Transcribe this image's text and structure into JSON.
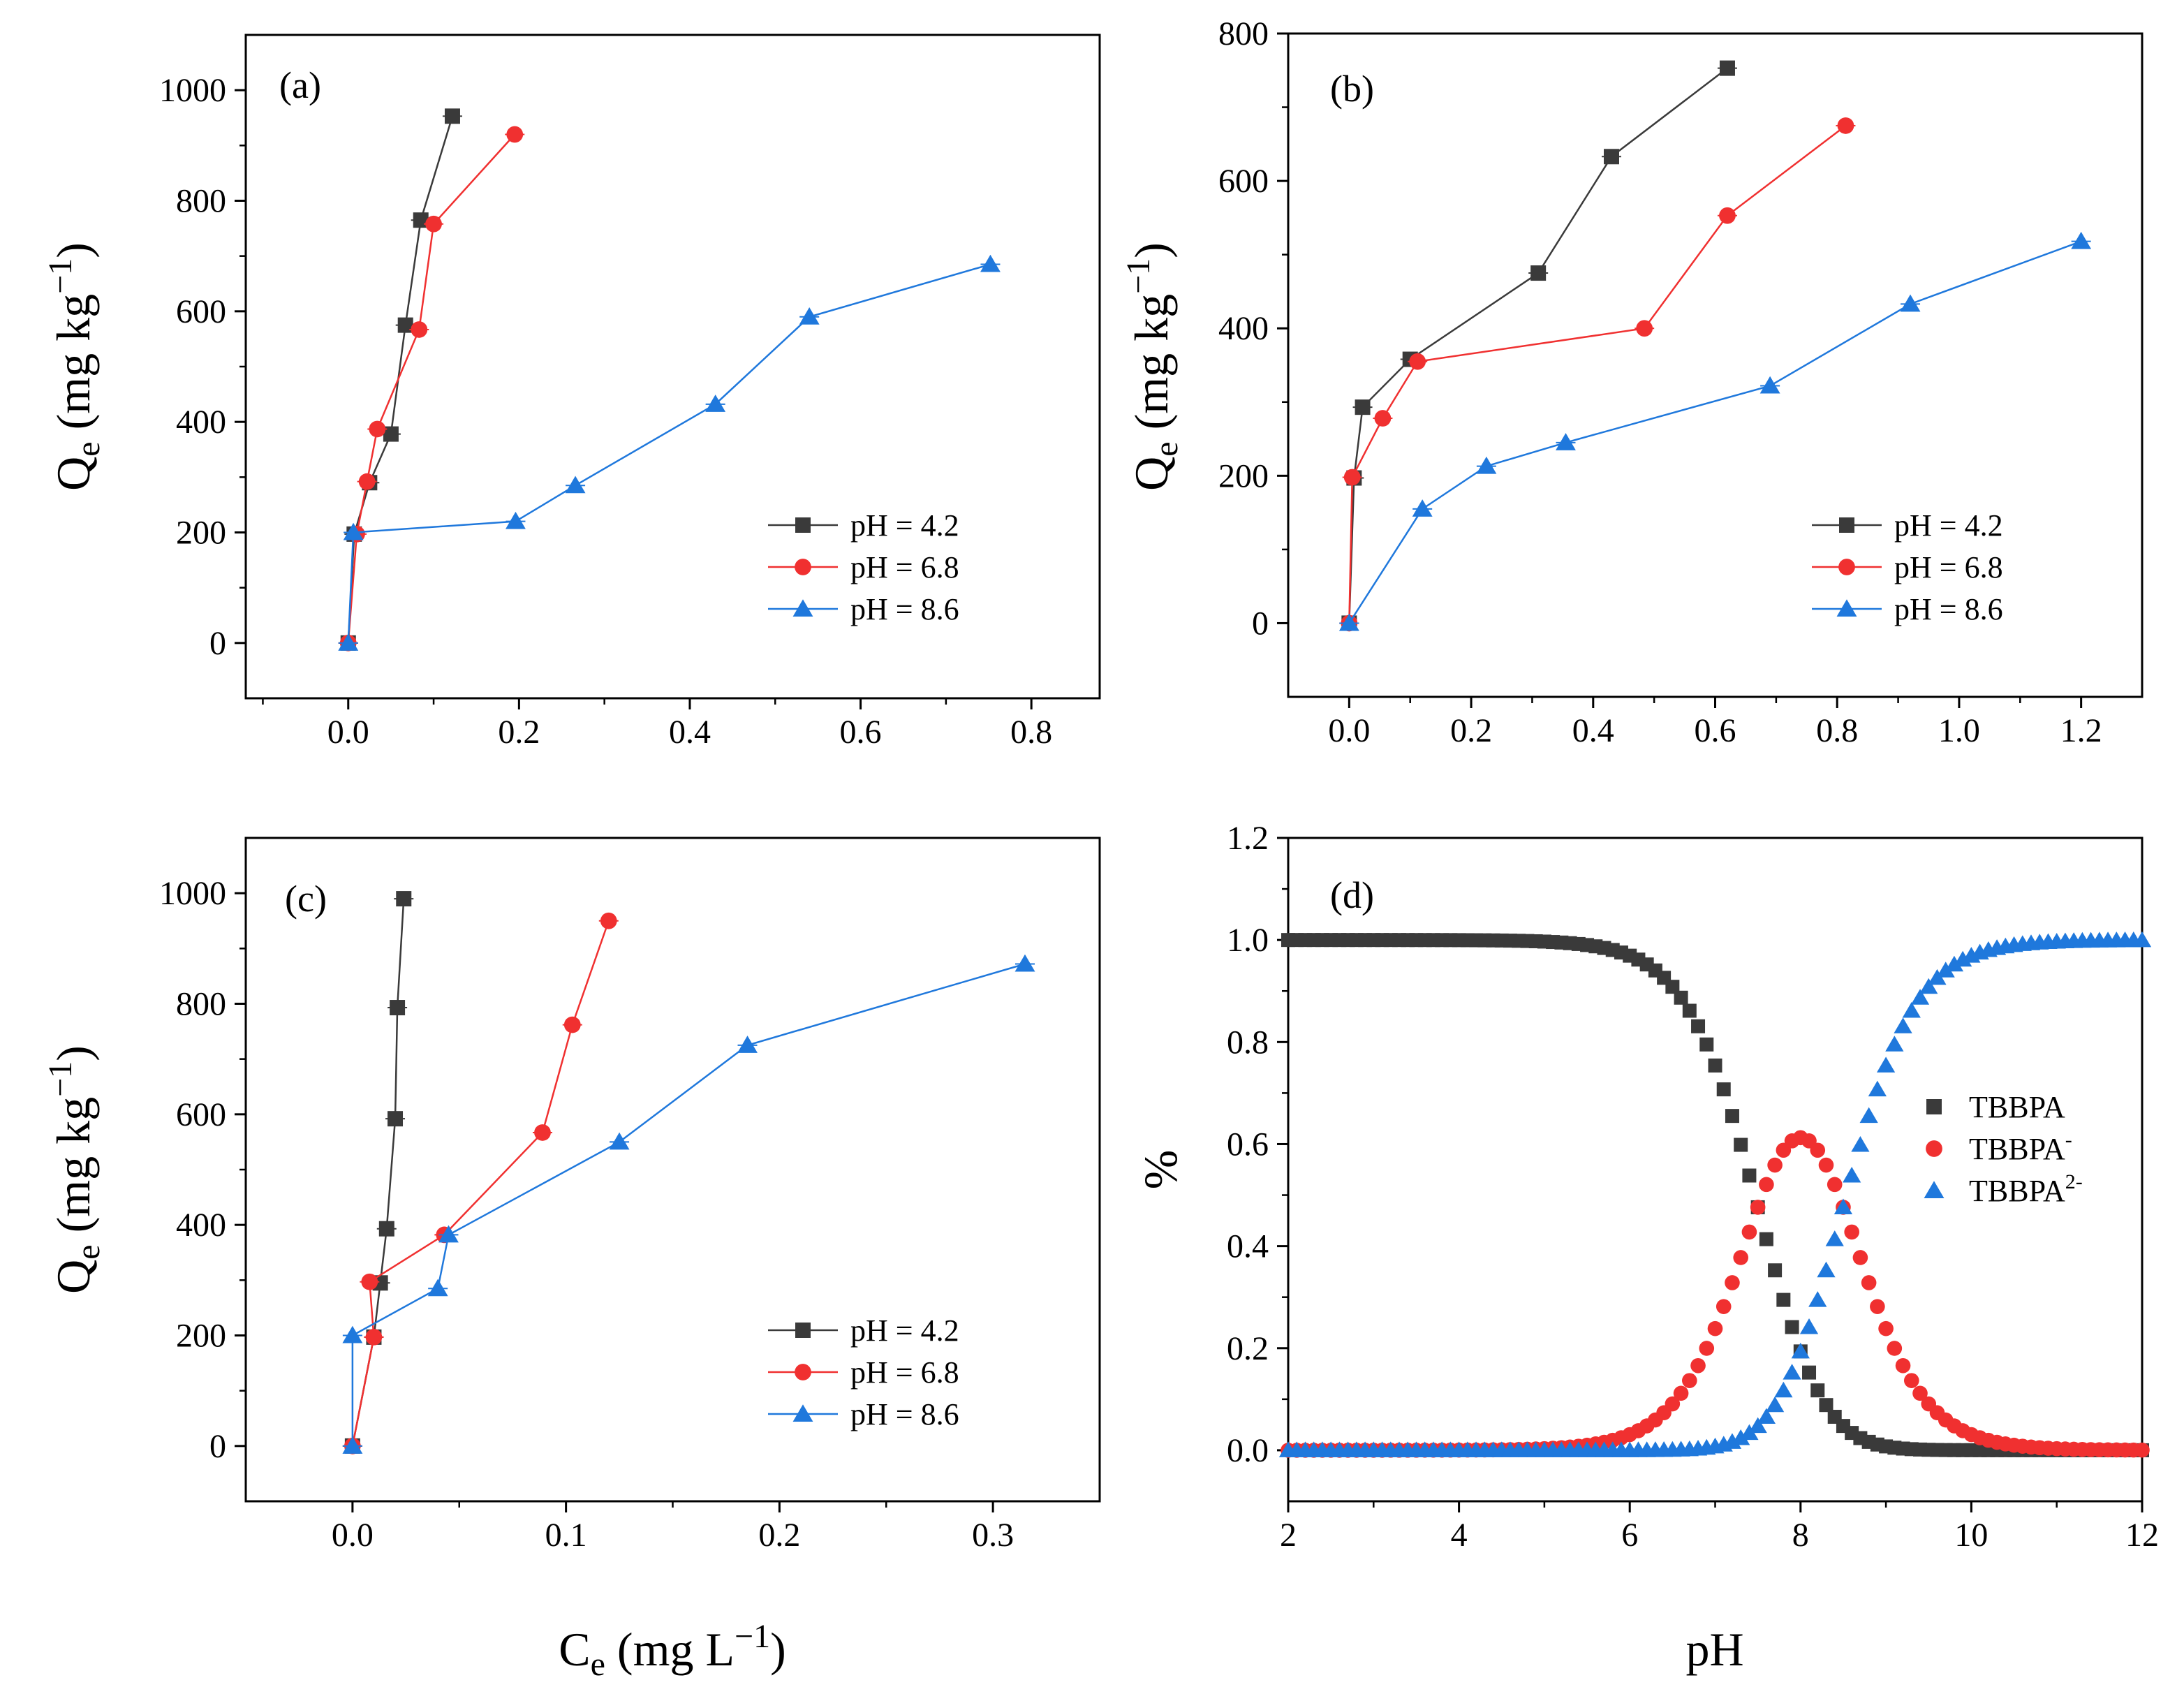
{
  "figure": {
    "y_label": {
      "main": "Q",
      "sub": "e",
      "rest": " (mg kg",
      "sup": "−1",
      "close": ")"
    },
    "x_label": {
      "main": "C",
      "sub": "e",
      "rest": " (mg L",
      "sup": "−1",
      "close": ")"
    },
    "ph_label": "pH",
    "percent_label": "%"
  },
  "colors": {
    "black": "#3a3a3a",
    "red": "#f03030",
    "blue": "#1f78dc"
  },
  "chart_data": [
    {
      "id": "a",
      "panel_label": "(a)",
      "type": "line",
      "xlim": [
        -0.12,
        0.88
      ],
      "ylim": [
        -100,
        1100
      ],
      "xticks": [
        0.0,
        0.2,
        0.4,
        0.6,
        0.8
      ],
      "xtick_labels": [
        "0.0",
        "0.2",
        "0.4",
        "0.6",
        "0.8"
      ],
      "yticks": [
        0,
        200,
        400,
        600,
        800,
        1000
      ],
      "ytick_labels": [
        "0",
        "200",
        "400",
        "600",
        "800",
        "1000"
      ],
      "legend": "right",
      "series": [
        {
          "name": "pH = 4.2",
          "marker": "square",
          "color": "#3a3a3a",
          "x": [
            0.0,
            0.007,
            0.025,
            0.05,
            0.067,
            0.085,
            0.122
          ],
          "y": [
            0,
            197,
            290,
            378,
            575,
            765,
            953
          ]
        },
        {
          "name": "pH = 6.8",
          "marker": "circle",
          "color": "#f03030",
          "x": [
            0.0,
            0.01,
            0.022,
            0.034,
            0.083,
            0.1,
            0.195
          ],
          "y": [
            0,
            197,
            292,
            387,
            567,
            758,
            920
          ]
        },
        {
          "name": "pH = 8.6",
          "marker": "triangle",
          "color": "#1f78dc",
          "x": [
            0.0,
            0.006,
            0.196,
            0.266,
            0.43,
            0.54,
            0.752
          ],
          "y": [
            0,
            200,
            220,
            285,
            432,
            590,
            685
          ]
        }
      ]
    },
    {
      "id": "b",
      "panel_label": "(b)",
      "type": "line",
      "xlim": [
        -0.1,
        1.3
      ],
      "ylim": [
        -100,
        800
      ],
      "xticks": [
        0.0,
        0.2,
        0.4,
        0.6,
        0.8,
        1.0,
        1.2
      ],
      "xtick_labels": [
        "0.0",
        "0.2",
        "0.4",
        "0.6",
        "0.8",
        "1.0",
        "1.2"
      ],
      "yticks": [
        0,
        200,
        400,
        600,
        800
      ],
      "ytick_labels": [
        "0",
        "200",
        "400",
        "600",
        "800"
      ],
      "legend": "right",
      "series": [
        {
          "name": "pH = 4.2",
          "marker": "square",
          "color": "#3a3a3a",
          "x": [
            0.0,
            0.008,
            0.022,
            0.1,
            0.31,
            0.43,
            0.62
          ],
          "y": [
            0,
            197,
            293,
            358,
            475,
            633,
            753
          ]
        },
        {
          "name": "pH = 6.8",
          "marker": "circle",
          "color": "#f03030",
          "x": [
            0.0,
            0.005,
            0.055,
            0.112,
            0.484,
            0.62,
            0.814
          ],
          "y": [
            0,
            198,
            278,
            355,
            400,
            553,
            675
          ]
        },
        {
          "name": "pH = 8.6",
          "marker": "triangle",
          "color": "#1f78dc",
          "x": [
            0.0,
            0.12,
            0.225,
            0.355,
            0.69,
            0.92,
            1.2
          ],
          "y": [
            0,
            155,
            213,
            245,
            322,
            433,
            518
          ]
        }
      ]
    },
    {
      "id": "c",
      "panel_label": "(c)",
      "type": "line",
      "xlim": [
        -0.05,
        0.35
      ],
      "ylim": [
        -100,
        1100
      ],
      "xticks": [
        0.0,
        0.1,
        0.2,
        0.3
      ],
      "xtick_labels": [
        "0.0",
        "0.1",
        "0.2",
        "0.3"
      ],
      "yticks": [
        0,
        200,
        400,
        600,
        800,
        1000
      ],
      "ytick_labels": [
        "0",
        "200",
        "400",
        "600",
        "800",
        "1000"
      ],
      "legend": "right",
      "series": [
        {
          "name": "pH = 4.2",
          "marker": "square",
          "color": "#3a3a3a",
          "x": [
            0.0,
            0.01,
            0.013,
            0.016,
            0.02,
            0.021,
            0.024
          ],
          "y": [
            0,
            197,
            295,
            393,
            592,
            793,
            990
          ]
        },
        {
          "name": "pH = 6.8",
          "marker": "circle",
          "color": "#f03030",
          "x": [
            0.0,
            0.01,
            0.008,
            0.043,
            0.089,
            0.103,
            0.12
          ],
          "y": [
            0,
            197,
            297,
            382,
            567,
            762,
            950
          ]
        },
        {
          "name": "pH = 8.6",
          "marker": "triangle",
          "color": "#1f78dc",
          "x": [
            0.0,
            0.0,
            0.04,
            0.045,
            0.125,
            0.185,
            0.315
          ],
          "y": [
            0,
            200,
            285,
            382,
            550,
            725,
            872
          ]
        }
      ]
    },
    {
      "id": "d",
      "panel_label": "(d)",
      "type": "scatter",
      "xlim": [
        2,
        12
      ],
      "ylim": [
        -0.1,
        1.2
      ],
      "xticks": [
        2,
        4,
        6,
        8,
        10,
        12
      ],
      "xtick_labels": [
        "2",
        "4",
        "6",
        "8",
        "10",
        "12"
      ],
      "yticks": [
        0.0,
        0.2,
        0.4,
        0.6,
        0.8,
        1.0,
        1.2
      ],
      "ytick_labels": [
        "0.0",
        "0.2",
        "0.4",
        "0.6",
        "0.8",
        "1.0",
        "1.2"
      ],
      "x_range": [
        2,
        12
      ],
      "x_step": 0.1,
      "pKa1": 7.5,
      "pKa2": 8.5,
      "series": [
        {
          "name": "TBBPA",
          "label_main": "TBBPA",
          "label_sup": "",
          "marker": "square",
          "color": "#3a3a3a",
          "species": 0
        },
        {
          "name": "TBBPA-",
          "label_main": "TBBPA",
          "label_sup": "-",
          "marker": "circle",
          "color": "#f03030",
          "species": 1
        },
        {
          "name": "TBBPA2-",
          "label_main": "TBBPA",
          "label_sup": "2-",
          "marker": "triangle",
          "color": "#1f78dc",
          "species": 2
        }
      ]
    }
  ]
}
